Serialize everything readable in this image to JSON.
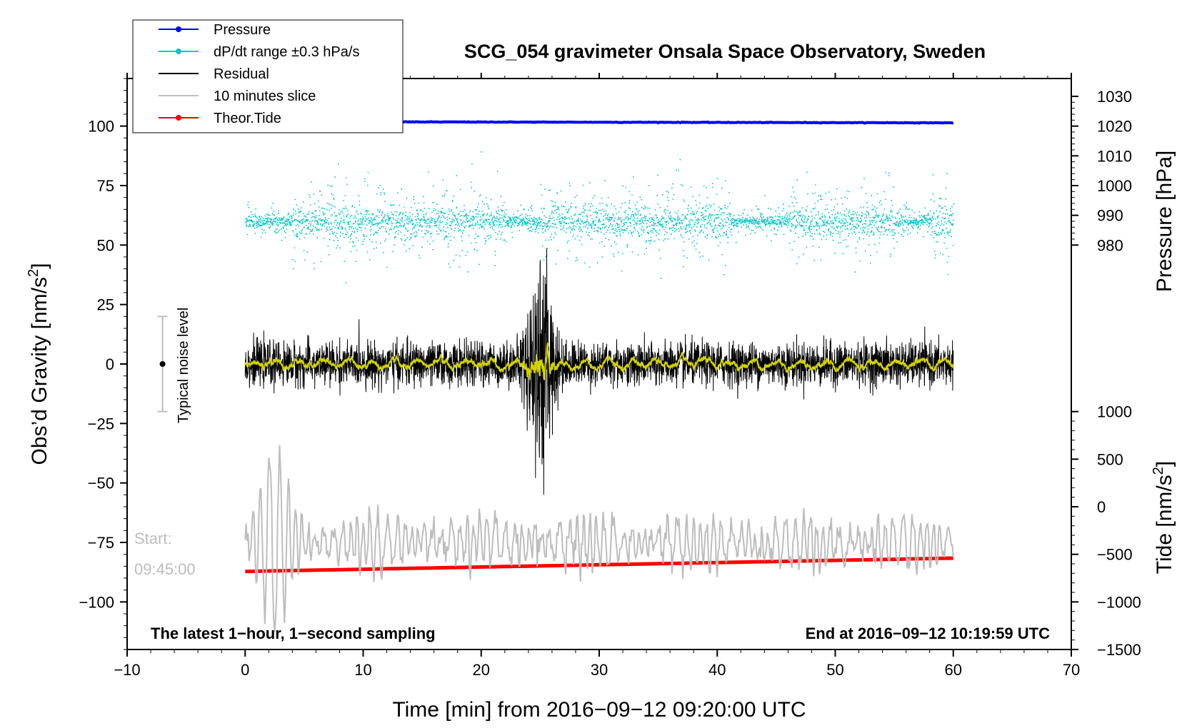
{
  "chart_data": {
    "type": "line",
    "title": "SCG_054 gravimeter Onsala Space Observatory, Sweden",
    "xlabel": "Time [min] from 2016−09−12 09:20:00 UTC",
    "ylabel_left": "Obs’d Gravity [nm/s",
    "ylabel_left_sup": "2",
    "ylabel_left_end": "]",
    "ylabel_right_top": "Pressure [hPa]",
    "ylabel_right_bottom": "Tide [nm/s",
    "ylabel_right_bottom_sup": "2",
    "ylabel_right_bottom_end": "]",
    "xlim": [
      -10,
      70
    ],
    "ylim_left": [
      -120,
      120
    ],
    "x_ticks": [
      -10,
      0,
      10,
      20,
      30,
      40,
      50,
      60,
      70
    ],
    "x_tick_labels": [
      "−10",
      "0",
      "10",
      "20",
      "30",
      "40",
      "50",
      "60",
      "70"
    ],
    "y_ticks_left": [
      100,
      75,
      50,
      25,
      0,
      -25,
      -50,
      -75,
      -100
    ],
    "y_tick_labels_left": [
      "100",
      "75",
      "50",
      "25",
      "0",
      "−25",
      "−50",
      "−75",
      "−100"
    ],
    "pressure_ticks": [
      1030,
      1020,
      1010,
      1000,
      990,
      980
    ],
    "pressure_tick_labels": [
      "1030",
      "1020",
      "1010",
      "1000",
      "990",
      "980"
    ],
    "tide_ticks": [
      1000,
      500,
      0,
      -500,
      -1000,
      -1500
    ],
    "tide_tick_labels": [
      "1000",
      "500",
      "0",
      "−500",
      "−1000",
      "−1500"
    ],
    "legend": [
      {
        "label": "Pressure",
        "color": "#0000ff",
        "marker": true
      },
      {
        "label": "dP/dt range ±0.3 hPa/s",
        "color": "#00c8c8",
        "marker": true
      },
      {
        "label": "Residual",
        "color": "#000000",
        "marker": false
      },
      {
        "label": "10 minutes slice",
        "color": "#bdbdbd",
        "marker": false
      },
      {
        "label": "Theor.Tide",
        "color": "#ff0000",
        "marker": true
      }
    ],
    "series": [
      {
        "name": "Pressure",
        "unit": "hPa",
        "x_range": [
          0,
          60
        ],
        "start": 1021.5,
        "end": 1021.1
      },
      {
        "name": "dP/dt range ±0.3 hPa/s",
        "unit": "nm/s2 (plot offset)",
        "x_range": [
          0,
          60
        ],
        "center": 60,
        "spread": 16
      },
      {
        "name": "Residual",
        "unit": "nm/s2",
        "x_range": [
          0,
          60
        ],
        "center": 0,
        "typical_amplitude": 10,
        "event_min": 25,
        "event_peak": 53,
        "event_trough": -50
      },
      {
        "name": "10 minutes slice",
        "unit": "nm/s2 (plot offset)",
        "x_range": [
          0,
          60
        ],
        "center": -75,
        "start_label": "Start:",
        "start_time": "09:45:00"
      },
      {
        "name": "Theor.Tide",
        "unit": "nm/s2 (right axis)",
        "x_range": [
          0,
          60
        ],
        "start": -680,
        "end": -540
      }
    ],
    "noise_bar": {
      "label": "Typical noise level",
      "x": -7,
      "center": 0,
      "half_range": 20
    },
    "annotation_left": "The latest 1−hour, 1−second sampling",
    "annotation_right": "End at 2016−09−12 10:19:59 UTC"
  },
  "colors": {
    "pressure": "#0000ff",
    "dpdt": "#00c8c8",
    "residual": "#000000",
    "smooth": "#d2d200",
    "slice": "#bdbdbd",
    "tide": "#ff0000"
  }
}
